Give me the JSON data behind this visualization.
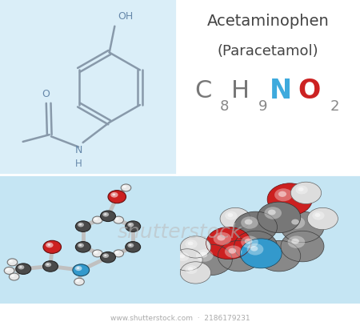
{
  "title_line1": "Acetaminophen",
  "title_line2": "(Paracetamol)",
  "bg_light_blue": "#daeef8",
  "bg_white": "#ffffff",
  "bg_bottom": "#c5e5f3",
  "text_dark": "#444444",
  "text_gray": "#777777",
  "text_N_color": "#3eaadd",
  "text_O_color": "#cc2222",
  "color_carbon": "#4a4a4a",
  "color_hydrogen": "#e8e8e8",
  "color_oxygen": "#cc2020",
  "color_nitrogen": "#3399cc",
  "color_bond": "#c0c0c0",
  "color_bond_sf": "#8899aa",
  "watermark": "shutterstock",
  "watermark_color": "#bbbbbb",
  "footer_text": "www.shutterstock.com  ·  2186179231",
  "footer_color": "#aaaaaa"
}
